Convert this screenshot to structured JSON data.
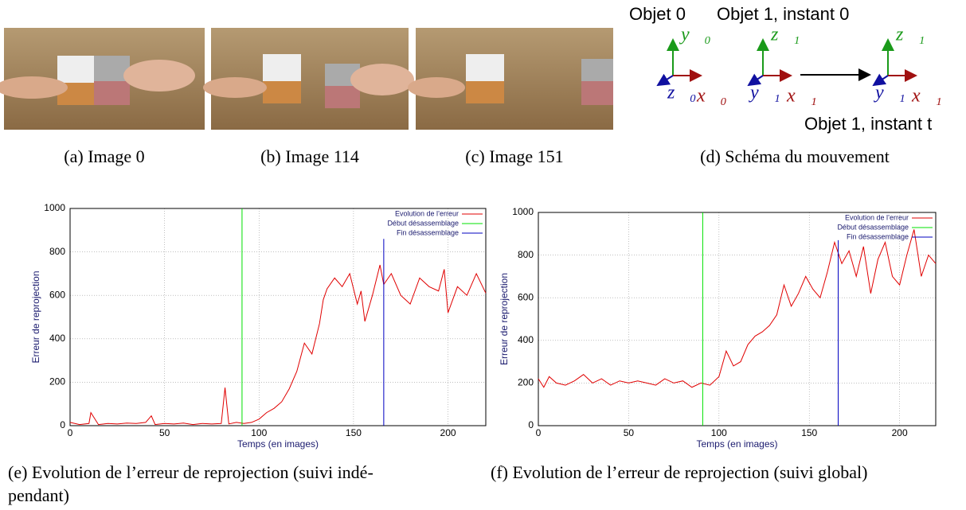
{
  "captions": [
    "(a) Image 0",
    "(b) Image 114",
    "(c) Image 151",
    "(d) Schéma du mouvement",
    "(e) Evolution de l’erreur de reprojection (suivi indé-",
    "pendant)",
    "(f) Evolution de l’erreur de reprojection (suivi global)"
  ],
  "diagram": {
    "labels": [
      "Objet 0",
      "Objet 1, instant 0",
      "Objet 1, instant t"
    ],
    "axes": [
      "y⃗₀",
      "z⃗₀",
      "x⃗₀",
      "z⃗₁",
      "y⃗₁",
      "x⃗₁",
      "z⃗₁",
      "y⃗₁",
      "x⃗₁"
    ]
  },
  "chart_data": [
    {
      "type": "line",
      "xlabel": "Temps (en images)",
      "ylabel": "Erreur de reprojection",
      "xlim": [
        0,
        220
      ],
      "ylim": [
        0,
        1000
      ],
      "xticks": [
        0,
        50,
        100,
        150,
        200
      ],
      "yticks": [
        0,
        200,
        400,
        600,
        800,
        1000
      ],
      "grid": true,
      "legend": "upper right",
      "series": [
        {
          "name": "Evolution de l’erreur",
          "color": "#e00000",
          "x": [
            0,
            5,
            10,
            11,
            15,
            20,
            25,
            30,
            35,
            40,
            43,
            45,
            50,
            55,
            60,
            65,
            70,
            75,
            80,
            82,
            84,
            88,
            92,
            96,
            100,
            104,
            108,
            112,
            116,
            120,
            124,
            128,
            132,
            134,
            136,
            140,
            144,
            148,
            152,
            154,
            156,
            160,
            164,
            166,
            170,
            175,
            180,
            185,
            190,
            195,
            198,
            200,
            205,
            210,
            215,
            220
          ],
          "values": [
            15,
            5,
            10,
            60,
            5,
            10,
            8,
            12,
            10,
            15,
            45,
            5,
            10,
            8,
            12,
            5,
            10,
            8,
            10,
            175,
            8,
            15,
            10,
            15,
            30,
            60,
            80,
            110,
            170,
            250,
            380,
            330,
            470,
            580,
            630,
            680,
            640,
            700,
            560,
            620,
            480,
            600,
            740,
            650,
            700,
            600,
            560,
            680,
            640,
            620,
            720,
            520,
            640,
            600,
            700,
            610
          ]
        },
        {
          "name": "Début désassemblage",
          "color": "#00e000",
          "x": [
            91,
            91
          ],
          "values": [
            0,
            1000
          ]
        },
        {
          "name": "Fin désassemblage",
          "color": "#0000c0",
          "x": [
            166,
            166
          ],
          "values": [
            0,
            860
          ]
        }
      ]
    },
    {
      "type": "line",
      "xlabel": "Temps (en images)",
      "ylabel": "Erreur de reprojection",
      "xlim": [
        0,
        220
      ],
      "ylim": [
        0,
        1000
      ],
      "xticks": [
        0,
        50,
        100,
        150,
        200
      ],
      "yticks": [
        0,
        200,
        400,
        600,
        800,
        1000
      ],
      "grid": true,
      "legend": "upper right",
      "series": [
        {
          "name": "Evolution de l’erreur",
          "color": "#e00000",
          "x": [
            0,
            3,
            6,
            10,
            15,
            20,
            25,
            30,
            35,
            40,
            45,
            50,
            55,
            60,
            65,
            70,
            75,
            80,
            85,
            90,
            95,
            100,
            104,
            108,
            112,
            116,
            120,
            124,
            128,
            132,
            136,
            140,
            144,
            148,
            152,
            156,
            160,
            164,
            168,
            172,
            176,
            180,
            184,
            188,
            192,
            196,
            200,
            204,
            208,
            212,
            216,
            220
          ],
          "values": [
            220,
            180,
            230,
            200,
            190,
            210,
            240,
            200,
            220,
            190,
            210,
            200,
            210,
            200,
            190,
            220,
            200,
            210,
            180,
            200,
            190,
            230,
            350,
            280,
            300,
            380,
            420,
            440,
            470,
            520,
            660,
            560,
            620,
            700,
            640,
            600,
            720,
            860,
            760,
            820,
            700,
            840,
            620,
            780,
            860,
            700,
            660,
            800,
            920,
            700,
            800,
            760
          ]
        },
        {
          "name": "Début désassemblage",
          "color": "#00e000",
          "x": [
            91,
            91
          ],
          "values": [
            0,
            1000
          ]
        },
        {
          "name": "Fin désassemblage",
          "color": "#0000c0",
          "x": [
            166,
            166
          ],
          "values": [
            0,
            870
          ]
        }
      ]
    }
  ]
}
